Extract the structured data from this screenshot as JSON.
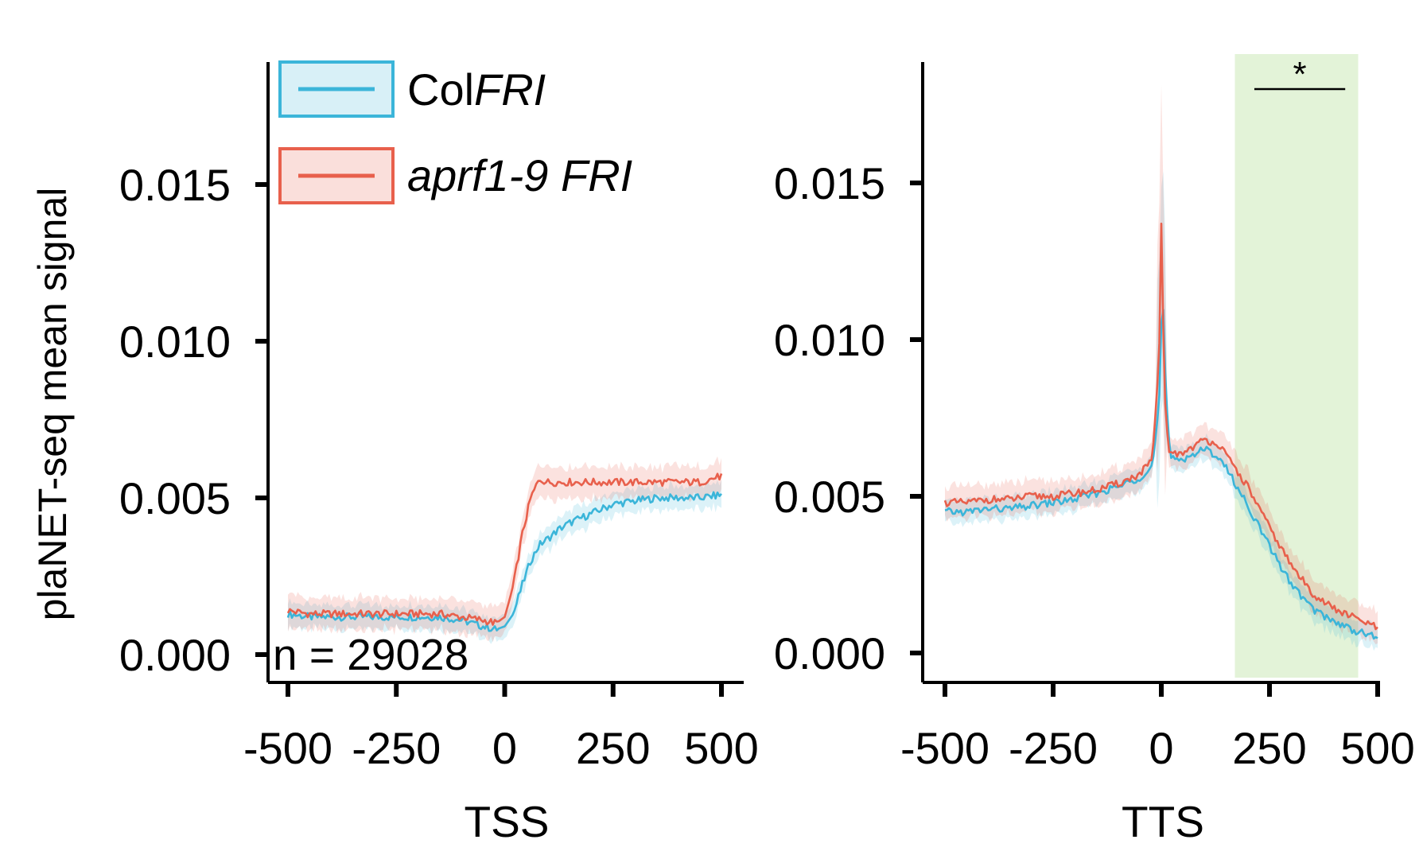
{
  "figure": {
    "ylabel": "plaNET-seq mean signal",
    "legend": [
      {
        "name_plain": "Col",
        "name_italic": "FRI",
        "color": "#3BB5D9"
      },
      {
        "name_plain": "",
        "name_italic": "aprf1-9 FRI",
        "color": "#E8604C"
      }
    ],
    "colors": {
      "col": "#3BB5D9",
      "aprf": "#E8604C",
      "highlight": "#E3F3D8"
    }
  },
  "chart_data": [
    {
      "type": "line",
      "panel": "TSS",
      "xlabel": "TSS",
      "ylabel": "plaNET-seq mean signal",
      "xlim": [
        -500,
        500
      ],
      "ylim": [
        -0.0005,
        0.0185
      ],
      "xticks": [
        -500,
        -250,
        0,
        250,
        500
      ],
      "xtick_labels": [
        "-500",
        "-250",
        "0",
        "250",
        "500"
      ],
      "yticks": [
        0,
        0.005,
        0.01,
        0.015
      ],
      "ytick_labels": [
        "0.000",
        "0.005",
        "0.010",
        "0.015"
      ],
      "annotation": "n = 29028",
      "series": [
        {
          "name": "ColFRI",
          "color": "#3BB5D9",
          "x": [
            -500,
            -450,
            -400,
            -350,
            -300,
            -250,
            -200,
            -150,
            -100,
            -50,
            -20,
            0,
            20,
            40,
            60,
            80,
            100,
            125,
            150,
            200,
            250,
            300,
            350,
            400,
            450,
            500
          ],
          "y": [
            0.0013,
            0.0012,
            0.0012,
            0.0012,
            0.0012,
            0.0012,
            0.0012,
            0.0012,
            0.0011,
            0.0009,
            0.0008,
            0.0009,
            0.0013,
            0.0022,
            0.003,
            0.0035,
            0.0037,
            0.004,
            0.0042,
            0.0045,
            0.0048,
            0.0049,
            0.005,
            0.005,
            0.005,
            0.0051
          ],
          "band": 0.0003
        },
        {
          "name": "aprf1-9 FRI",
          "color": "#E8604C",
          "x": [
            -500,
            -450,
            -400,
            -350,
            -300,
            -250,
            -200,
            -150,
            -100,
            -50,
            -20,
            0,
            20,
            40,
            60,
            80,
            100,
            125,
            150,
            200,
            250,
            300,
            350,
            400,
            450,
            500
          ],
          "y": [
            0.0014,
            0.0013,
            0.0013,
            0.0013,
            0.0013,
            0.0013,
            0.0013,
            0.0013,
            0.0012,
            0.0011,
            0.001,
            0.0012,
            0.0022,
            0.0038,
            0.005,
            0.0056,
            0.0055,
            0.0055,
            0.0055,
            0.0055,
            0.0055,
            0.0055,
            0.0055,
            0.0055,
            0.0055,
            0.0057
          ],
          "band": 0.0004
        }
      ]
    },
    {
      "type": "line",
      "panel": "TTS",
      "xlabel": "TTS",
      "xlim": [
        -500,
        500
      ],
      "ylim": [
        -0.0005,
        0.0185
      ],
      "xticks": [
        -500,
        -250,
        0,
        250,
        500
      ],
      "xtick_labels": [
        "-500",
        "-250",
        "0",
        "250",
        "500"
      ],
      "yticks": [
        0,
        0.005,
        0.01,
        0.015
      ],
      "ytick_labels": [
        "0.000",
        "0.005",
        "0.010",
        "0.015"
      ],
      "highlight": {
        "x_start": 170,
        "x_end": 455,
        "color": "#E3F3D8"
      },
      "significance": {
        "label": "*",
        "x_start": 215,
        "x_end": 425
      },
      "series": [
        {
          "name": "ColFRI",
          "color": "#3BB5D9",
          "x": [
            -500,
            -450,
            -400,
            -350,
            -300,
            -250,
            -200,
            -150,
            -100,
            -50,
            -20,
            -5,
            0,
            5,
            10,
            20,
            50,
            100,
            130,
            150,
            200,
            250,
            300,
            350,
            400,
            450,
            500
          ],
          "y": [
            0.0045,
            0.0045,
            0.0046,
            0.0046,
            0.0047,
            0.0048,
            0.0049,
            0.0051,
            0.0053,
            0.0056,
            0.006,
            0.008,
            0.0105,
            0.011,
            0.0085,
            0.0062,
            0.0062,
            0.0065,
            0.0063,
            0.0059,
            0.0047,
            0.0034,
            0.0022,
            0.0014,
            0.001,
            0.0007,
            0.0005
          ],
          "band": 0.0003
        },
        {
          "name": "aprf1-9 FRI",
          "color": "#E8604C",
          "x": [
            -500,
            -450,
            -400,
            -350,
            -300,
            -250,
            -200,
            -150,
            -100,
            -50,
            -20,
            -5,
            0,
            5,
            10,
            20,
            50,
            100,
            130,
            150,
            200,
            250,
            300,
            350,
            400,
            450,
            500
          ],
          "y": [
            0.0048,
            0.0048,
            0.0049,
            0.0049,
            0.005,
            0.005,
            0.0051,
            0.0052,
            0.0054,
            0.0057,
            0.0062,
            0.0095,
            0.0137,
            0.01,
            0.0075,
            0.0063,
            0.0064,
            0.0068,
            0.0067,
            0.0063,
            0.0053,
            0.004,
            0.0028,
            0.0019,
            0.0014,
            0.0011,
            0.0008
          ],
          "band": 0.0004
        }
      ]
    }
  ]
}
